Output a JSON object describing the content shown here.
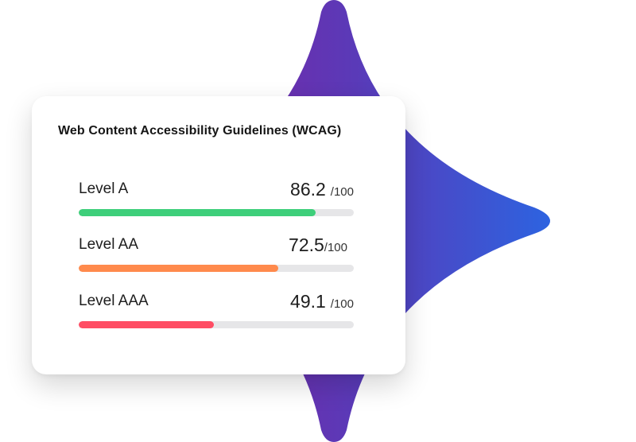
{
  "card": {
    "title": "Web Content Accessibility Guidelines (WCAG)"
  },
  "levels": [
    {
      "label": "Level A",
      "score": "86.2",
      "max": "/100",
      "progress": 0.862,
      "color": "#3ecf7a"
    },
    {
      "label": "Level AA",
      "score": "72.5",
      "max": "/100",
      "progress": 0.725,
      "color": "#ff8a4c"
    },
    {
      "label": "Level AAA",
      "score": "49.1",
      "max": "/100",
      "progress": 0.491,
      "color": "#ff4d64"
    }
  ],
  "colors": {
    "star_gradient_start": "#8a1a9b",
    "star_gradient_end": "#2d63e0",
    "track": "#e6e6e8"
  }
}
